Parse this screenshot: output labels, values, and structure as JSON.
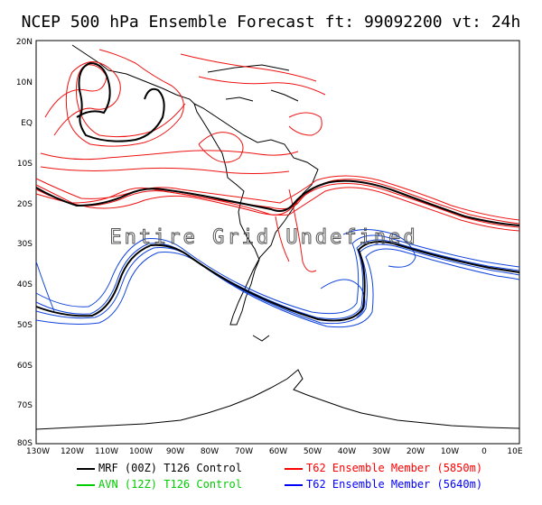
{
  "title": "NCEP 500 hPa Ensemble Forecast   ft: 99092200 vt: 24h",
  "overlay_text": "Entire Grid Undefined",
  "lat_labels": [
    "20N",
    "10N",
    "EQ",
    "10S",
    "20S",
    "30S",
    "40S",
    "50S",
    "60S",
    "70S",
    "80S"
  ],
  "lon_labels": [
    "130W",
    "120W",
    "110W",
    "100W",
    "90W",
    "80W",
    "70W",
    "60W",
    "50W",
    "40W",
    "30W",
    "20W",
    "10W",
    "0",
    "10E"
  ],
  "legend": [
    {
      "label": "MRF (00Z) T126 Control",
      "color": "#000000"
    },
    {
      "label": "AVN (12Z) T126 Control",
      "color": "#00cc00"
    },
    {
      "label": "T62 Ensemble Member (5850m)",
      "color": "#ff0000"
    },
    {
      "label": "T62 Ensemble Member (5640m)",
      "color": "#0000ff"
    }
  ],
  "colors": {
    "red": "#ee1111",
    "blue": "#1144dd",
    "black": "#000000"
  }
}
